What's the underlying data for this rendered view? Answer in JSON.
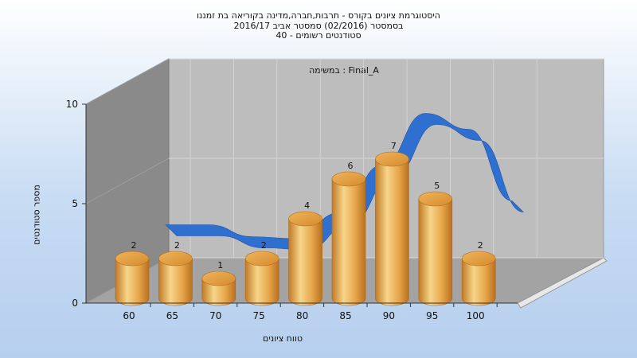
{
  "chart_data": {
    "type": "bar",
    "title_lines": [
      "היסטוגרמת ציונים בקורס - תרבות,חברה,מדינה בקוריאה בת זמננו",
      "בסמסטר  (02/2016)  סמסטר אביב 2016/17",
      "סטודנטים רשומים - 40"
    ],
    "annotation": "במשימה : Final_A",
    "xlabel": "טווח ציונים",
    "ylabel": "מספר סטודנטים",
    "x_ticks": [
      "60",
      "65",
      "70",
      "75",
      "80",
      "85",
      "90",
      "95",
      "100"
    ],
    "y_ticks": [
      0,
      5,
      10
    ],
    "ylim": [
      0,
      10
    ],
    "values": [
      2,
      2,
      1,
      2,
      4,
      6,
      7,
      5,
      2
    ],
    "trend_curve": [
      2.8,
      2.8,
      2.2,
      2.1,
      3.4,
      5.8,
      8.4,
      7.6,
      4.0
    ],
    "colors": {
      "bar_light": "#f6d58a",
      "bar_dark": "#c27a26",
      "bar_top": "#e39b3e",
      "curve": "#2f6fcf",
      "back_wall": "#bdbdbd",
      "side_wall": "#8a8a8a",
      "floor": "#a3a3a3"
    }
  }
}
